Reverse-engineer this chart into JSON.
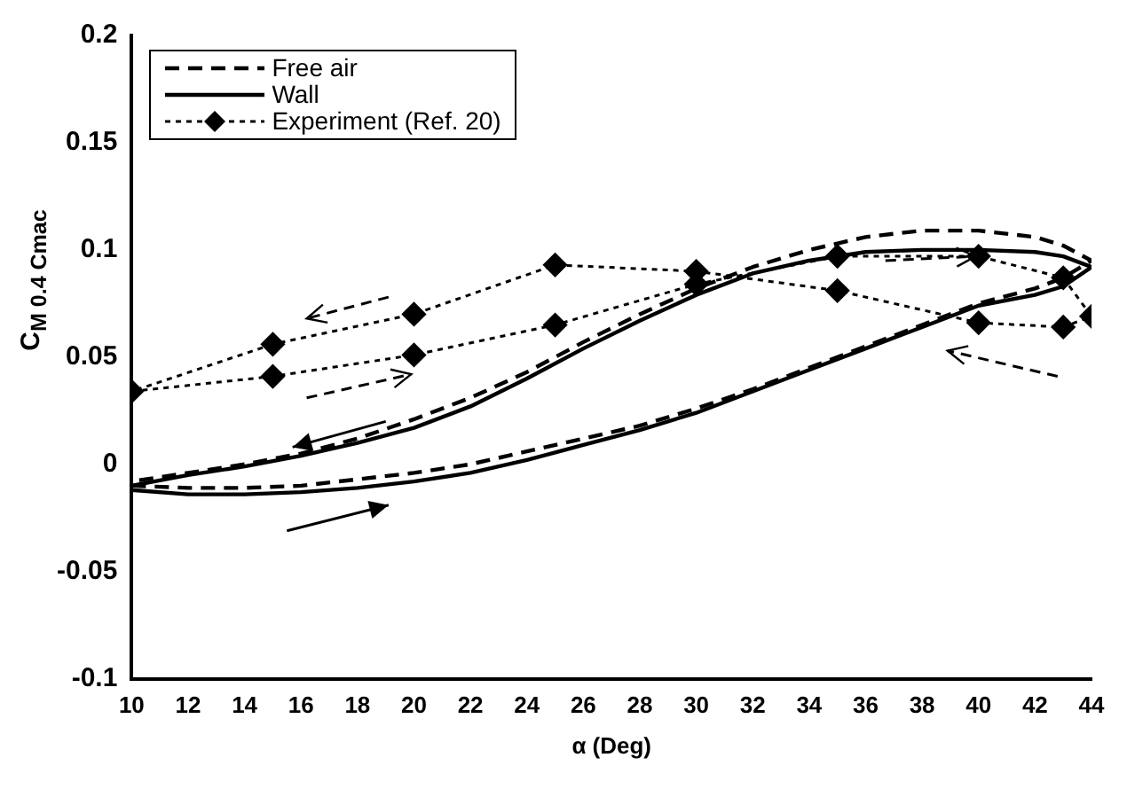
{
  "chart_data": {
    "type": "line",
    "xlabel": "α (Deg)",
    "ylabel": "C$_{M 0.4 Cmac}$",
    "xlim": [
      10,
      44
    ],
    "xticks": [
      10,
      12,
      14,
      16,
      18,
      20,
      22,
      24,
      26,
      28,
      30,
      32,
      34,
      36,
      38,
      40,
      42,
      44
    ],
    "ylim": [
      -0.1,
      0.2
    ],
    "yticks": [
      -0.1,
      -0.05,
      0,
      0.05,
      0.1,
      0.15,
      0.2
    ],
    "grid": false,
    "legend": "top left",
    "series": [
      {
        "name": "Free air",
        "color": "#000000",
        "line_style": "dashed",
        "marker": "none",
        "x": [
          10,
          12,
          14,
          16,
          18,
          20,
          22,
          24,
          26,
          28,
          30,
          32,
          34,
          36,
          38,
          40,
          42,
          43,
          44,
          43,
          42,
          40,
          38,
          36,
          34,
          32,
          30,
          28,
          26,
          24,
          22,
          20,
          18,
          16,
          14,
          12,
          10
        ],
        "values": [
          -0.01,
          -0.011,
          -0.011,
          -0.01,
          -0.007,
          -0.004,
          0.0,
          0.006,
          0.012,
          0.018,
          0.026,
          0.035,
          0.045,
          0.055,
          0.065,
          0.075,
          0.082,
          0.087,
          0.095,
          0.102,
          0.106,
          0.109,
          0.109,
          0.106,
          0.1,
          0.092,
          0.082,
          0.07,
          0.057,
          0.043,
          0.031,
          0.021,
          0.012,
          0.005,
          0.0,
          -0.004,
          -0.008
        ]
      },
      {
        "name": "Wall",
        "color": "#000000",
        "line_style": "solid",
        "marker": "none",
        "x": [
          10,
          12,
          14,
          16,
          18,
          20,
          22,
          24,
          26,
          28,
          30,
          32,
          34,
          36,
          38,
          40,
          42,
          43,
          44,
          43,
          42,
          40,
          38,
          36,
          34,
          32,
          30,
          28,
          26,
          24,
          22,
          20,
          18,
          16,
          14,
          12,
          10
        ],
        "values": [
          -0.012,
          -0.014,
          -0.014,
          -0.013,
          -0.011,
          -0.008,
          -0.004,
          0.002,
          0.009,
          0.016,
          0.024,
          0.034,
          0.044,
          0.054,
          0.064,
          0.074,
          0.079,
          0.083,
          0.092,
          0.097,
          0.099,
          0.1,
          0.1,
          0.099,
          0.095,
          0.089,
          0.079,
          0.067,
          0.054,
          0.04,
          0.027,
          0.017,
          0.01,
          0.004,
          -0.001,
          -0.005,
          -0.01
        ]
      },
      {
        "name": "Experiment (Ref. 20)",
        "color": "#000000",
        "line_style": "dotted",
        "marker": "diamond",
        "x": [
          10,
          15,
          20,
          25,
          30,
          35,
          40,
          43,
          44,
          43,
          40,
          35,
          30,
          25,
          20,
          15
        ],
        "values": [
          0.034,
          0.041,
          0.051,
          0.065,
          0.084,
          0.097,
          0.097,
          0.087,
          0.069,
          0.064,
          0.066,
          0.081,
          0.09,
          0.093,
          0.07,
          0.056
        ]
      },
      {
        "color": "#000000",
        "line_style": "dotted",
        "marker": "none",
        "x": [
          15,
          10
        ],
        "values": [
          0.056,
          0.034
        ]
      }
    ]
  }
}
